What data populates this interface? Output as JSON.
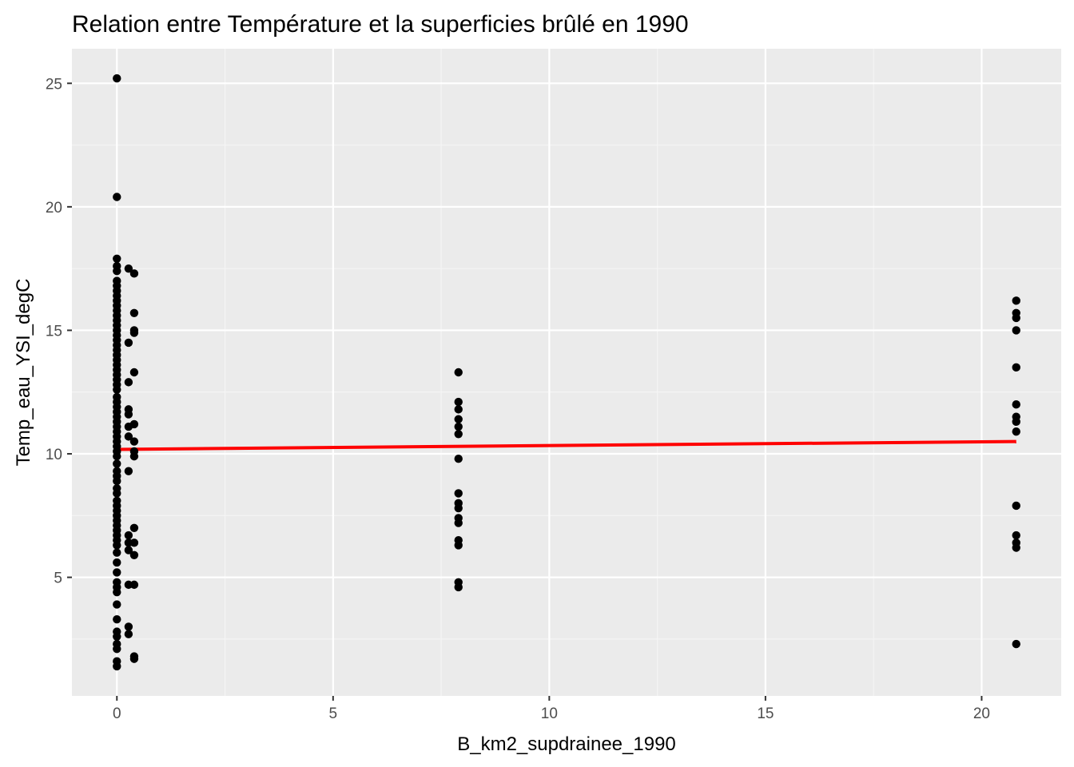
{
  "chart_data": {
    "type": "scatter",
    "title": "Relation entre Température et la superficies brûlé en 1990",
    "xlabel": "B_km2_supdrainee_1990",
    "ylabel": "Temp_eau_YSI_degC",
    "xlim": [
      -1.04,
      21.84
    ],
    "ylim": [
      0.2,
      26.4
    ],
    "xticks": [
      0,
      5,
      10,
      15,
      20
    ],
    "yticks": [
      5,
      10,
      15,
      20,
      25
    ],
    "xtick_labels": [
      "0",
      "5",
      "10",
      "15",
      "20"
    ],
    "ytick_labels": [
      "5",
      "10",
      "15",
      "20",
      "25"
    ],
    "grid": true,
    "colors": {
      "panel": "#ebebeb",
      "grid_major": "#ffffff",
      "grid_minor": "#f5f5f5",
      "points": "#000000",
      "fit_line": "#ff0000",
      "tick_label": "#4d4d4d",
      "tick_mark": "#333333"
    },
    "points": [
      [
        0,
        25.2
      ],
      [
        0,
        20.4
      ],
      [
        0,
        17.9
      ],
      [
        0,
        17.6
      ],
      [
        0,
        17.4
      ],
      [
        0,
        17.0
      ],
      [
        0,
        16.8
      ],
      [
        0,
        16.6
      ],
      [
        0,
        16.4
      ],
      [
        0,
        16.2
      ],
      [
        0,
        16.0
      ],
      [
        0,
        15.8
      ],
      [
        0,
        15.6
      ],
      [
        0,
        15.4
      ],
      [
        0,
        15.2
      ],
      [
        0,
        15.0
      ],
      [
        0,
        14.8
      ],
      [
        0,
        14.6
      ],
      [
        0,
        14.4
      ],
      [
        0,
        14.2
      ],
      [
        0,
        14.0
      ],
      [
        0,
        13.8
      ],
      [
        0,
        13.6
      ],
      [
        0,
        13.4
      ],
      [
        0,
        13.2
      ],
      [
        0,
        13.0
      ],
      [
        0,
        12.8
      ],
      [
        0,
        12.6
      ],
      [
        0,
        12.3
      ],
      [
        0,
        12.1
      ],
      [
        0,
        11.9
      ],
      [
        0,
        11.7
      ],
      [
        0,
        11.5
      ],
      [
        0,
        11.3
      ],
      [
        0,
        11.1
      ],
      [
        0,
        10.9
      ],
      [
        0,
        10.7
      ],
      [
        0,
        10.5
      ],
      [
        0,
        10.3
      ],
      [
        0,
        10.1
      ],
      [
        0,
        9.9
      ],
      [
        0,
        9.6
      ],
      [
        0,
        9.3
      ],
      [
        0,
        9.1
      ],
      [
        0,
        8.9
      ],
      [
        0,
        8.6
      ],
      [
        0,
        8.4
      ],
      [
        0,
        8.1
      ],
      [
        0,
        7.9
      ],
      [
        0,
        7.7
      ],
      [
        0,
        7.5
      ],
      [
        0,
        7.3
      ],
      [
        0,
        7.1
      ],
      [
        0,
        6.9
      ],
      [
        0,
        6.7
      ],
      [
        0,
        6.5
      ],
      [
        0,
        6.3
      ],
      [
        0,
        6.0
      ],
      [
        0,
        5.6
      ],
      [
        0,
        5.2
      ],
      [
        0,
        4.8
      ],
      [
        0,
        4.6
      ],
      [
        0,
        4.4
      ],
      [
        0,
        3.9
      ],
      [
        0,
        3.3
      ],
      [
        0,
        2.8
      ],
      [
        0,
        2.6
      ],
      [
        0,
        2.3
      ],
      [
        0,
        2.1
      ],
      [
        0,
        1.6
      ],
      [
        0,
        1.4
      ],
      [
        0.27,
        17.5
      ],
      [
        0.27,
        14.5
      ],
      [
        0.27,
        12.9
      ],
      [
        0.27,
        11.8
      ],
      [
        0.27,
        11.6
      ],
      [
        0.27,
        11.1
      ],
      [
        0.27,
        10.7
      ],
      [
        0.27,
        9.3
      ],
      [
        0.27,
        6.7
      ],
      [
        0.27,
        6.4
      ],
      [
        0.27,
        6.1
      ],
      [
        0.27,
        4.7
      ],
      [
        0.27,
        3.0
      ],
      [
        0.27,
        2.7
      ],
      [
        0.4,
        17.3
      ],
      [
        0.4,
        15.7
      ],
      [
        0.4,
        15.0
      ],
      [
        0.4,
        14.9
      ],
      [
        0.4,
        13.3
      ],
      [
        0.4,
        11.2
      ],
      [
        0.4,
        10.5
      ],
      [
        0.4,
        10.1
      ],
      [
        0.4,
        9.9
      ],
      [
        0.4,
        7.0
      ],
      [
        0.4,
        6.4
      ],
      [
        0.4,
        5.9
      ],
      [
        0.4,
        4.7
      ],
      [
        0.4,
        1.8
      ],
      [
        0.4,
        1.7
      ],
      [
        7.9,
        13.3
      ],
      [
        7.9,
        12.1
      ],
      [
        7.9,
        11.8
      ],
      [
        7.9,
        11.4
      ],
      [
        7.9,
        11.1
      ],
      [
        7.9,
        10.8
      ],
      [
        7.9,
        9.8
      ],
      [
        7.9,
        8.4
      ],
      [
        7.9,
        8.0
      ],
      [
        7.9,
        7.8
      ],
      [
        7.9,
        7.4
      ],
      [
        7.9,
        7.2
      ],
      [
        7.9,
        6.5
      ],
      [
        7.9,
        6.3
      ],
      [
        7.9,
        4.8
      ],
      [
        7.9,
        4.6
      ],
      [
        20.8,
        16.2
      ],
      [
        20.8,
        15.7
      ],
      [
        20.8,
        15.5
      ],
      [
        20.8,
        15.0
      ],
      [
        20.8,
        13.5
      ],
      [
        20.8,
        12.0
      ],
      [
        20.8,
        11.5
      ],
      [
        20.8,
        11.3
      ],
      [
        20.8,
        10.9
      ],
      [
        20.8,
        7.9
      ],
      [
        20.8,
        6.7
      ],
      [
        20.8,
        6.4
      ],
      [
        20.8,
        6.2
      ],
      [
        20.8,
        2.3
      ]
    ],
    "fit_line": {
      "x": [
        0,
        20.8
      ],
      "y": [
        10.18,
        10.5
      ]
    }
  }
}
